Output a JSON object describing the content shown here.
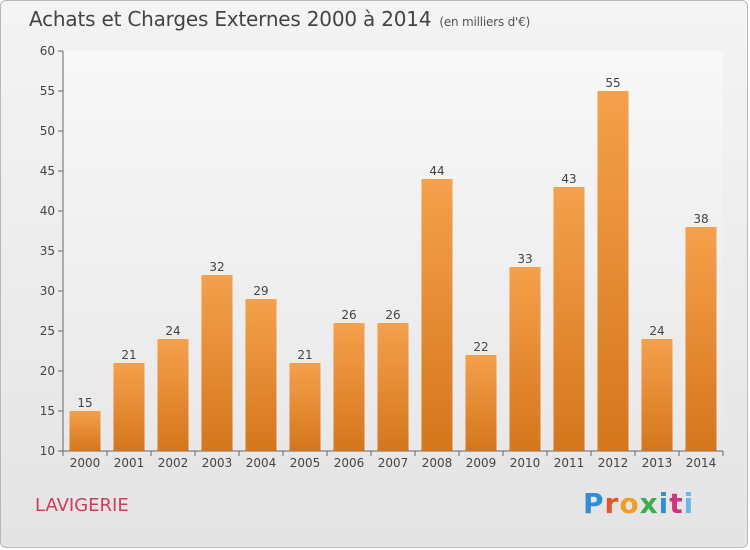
{
  "header": {
    "title": "Achats et Charges Externes 2000 à 2014",
    "subtitle": "(en milliers d'€)"
  },
  "footer": {
    "commune": "LAVIGERIE",
    "logo_text": "Proxiti",
    "logo_colors": [
      "#2f8fd8",
      "#e8542a",
      "#f0a020",
      "#3cae4a",
      "#2f8fd8",
      "#d8307a",
      "#6ab8e8"
    ]
  },
  "chart_data": {
    "type": "bar",
    "categories": [
      "2000",
      "2001",
      "2002",
      "2003",
      "2004",
      "2005",
      "2006",
      "2007",
      "2008",
      "2009",
      "2010",
      "2011",
      "2012",
      "2013",
      "2014"
    ],
    "values": [
      15,
      21,
      24,
      32,
      29,
      21,
      26,
      26,
      44,
      22,
      33,
      43,
      55,
      24,
      38
    ],
    "ylim": [
      10,
      60
    ],
    "yticks": [
      10,
      15,
      20,
      25,
      30,
      35,
      40,
      45,
      50,
      55,
      60
    ],
    "grid": false,
    "bar_color_top": "#f5a04c",
    "bar_color_bottom": "#d5761c"
  }
}
